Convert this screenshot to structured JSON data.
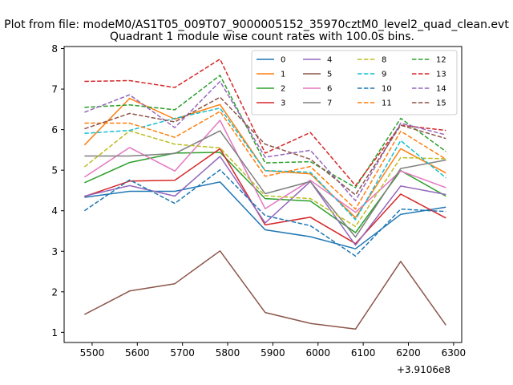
{
  "chart_data": {
    "type": "line",
    "suptitle": "Plot from file: modeM0/AS1T05_009T07_9000005152_35970cztM0_level2_quad_clean.evt",
    "title": "Quadrant 1 module wise count rates with 100.0s bins.",
    "xlabel": "",
    "ylabel": "",
    "x_offset_label": "+3.9106e8",
    "xlim": [
      5438,
      6318
    ],
    "ylim": [
      0.75,
      8.05
    ],
    "x": [
      5483,
      5583,
      5683,
      5783,
      5883,
      5983,
      6083,
      6183,
      6283
    ],
    "xticks": [
      5500,
      5600,
      5700,
      5800,
      5900,
      6000,
      6100,
      6200,
      6300
    ],
    "xtick_labels": [
      "5500",
      "5600",
      "5700",
      "5800",
      "5900",
      "6000",
      "6100",
      "6200",
      "6300"
    ],
    "yticks": [
      1,
      2,
      3,
      4,
      5,
      6,
      7,
      8
    ],
    "ytick_labels": [
      "1",
      "2",
      "3",
      "4",
      "5",
      "6",
      "7",
      "8"
    ],
    "legend_position": "top-right",
    "legend_columns": 4,
    "series": [
      {
        "name": "0",
        "color": "#1f77b4",
        "dash": "solid",
        "values": [
          4.33,
          4.48,
          4.48,
          4.71,
          3.53,
          3.36,
          3.06,
          3.91,
          4.09
        ]
      },
      {
        "name": "1",
        "color": "#ff7f0e",
        "dash": "solid",
        "values": [
          5.62,
          6.77,
          6.26,
          6.62,
          4.99,
          4.91,
          3.83,
          5.53,
          4.93
        ]
      },
      {
        "name": "2",
        "color": "#2ca02c",
        "dash": "solid",
        "values": [
          4.69,
          5.19,
          5.42,
          5.44,
          4.3,
          4.24,
          3.46,
          4.99,
          4.36
        ]
      },
      {
        "name": "3",
        "color": "#d62728",
        "dash": "solid",
        "values": [
          4.35,
          4.73,
          4.75,
          5.53,
          3.65,
          3.84,
          3.19,
          4.41,
          3.82
        ]
      },
      {
        "name": "4",
        "color": "#9467bd",
        "dash": "solid",
        "values": [
          4.36,
          4.62,
          4.36,
          5.34,
          3.7,
          4.72,
          3.15,
          4.61,
          4.4
        ]
      },
      {
        "name": "5",
        "color": "#8c564b",
        "dash": "solid",
        "values": [
          1.44,
          2.02,
          2.2,
          3.01,
          1.49,
          1.22,
          1.08,
          2.75,
          1.18
        ]
      },
      {
        "name": "6",
        "color": "#e377c2",
        "dash": "solid",
        "values": [
          4.83,
          5.56,
          4.98,
          6.23,
          4.05,
          4.75,
          3.96,
          4.98,
          4.57
        ]
      },
      {
        "name": "7",
        "color": "#7f7f7f",
        "dash": "solid",
        "values": [
          5.35,
          5.35,
          5.41,
          5.97,
          4.42,
          4.72,
          3.35,
          5.04,
          5.25
        ]
      },
      {
        "name": "8",
        "color": "#bcbd22",
        "dash": "dashed",
        "values": [
          5.08,
          5.97,
          5.64,
          5.55,
          4.37,
          4.3,
          3.61,
          5.31,
          5.28
        ]
      },
      {
        "name": "9",
        "color": "#17becf",
        "dash": "dashed",
        "values": [
          5.91,
          5.98,
          6.28,
          6.53,
          4.99,
          4.95,
          3.78,
          5.73,
          4.81
        ]
      },
      {
        "name": "10",
        "color": "#1f77b4",
        "dash": "dashed",
        "values": [
          4.0,
          4.76,
          4.18,
          5.01,
          3.88,
          3.63,
          2.88,
          4.04,
          3.98
        ]
      },
      {
        "name": "11",
        "color": "#ff7f0e",
        "dash": "dashed",
        "values": [
          6.16,
          6.16,
          5.81,
          6.45,
          4.85,
          5.09,
          4.04,
          5.96,
          5.27
        ]
      },
      {
        "name": "12",
        "color": "#2ca02c",
        "dash": "dashed",
        "values": [
          6.55,
          6.61,
          6.49,
          7.34,
          5.18,
          5.21,
          4.57,
          6.28,
          5.46
        ]
      },
      {
        "name": "13",
        "color": "#d62728",
        "dash": "dashed",
        "values": [
          7.19,
          7.21,
          7.04,
          7.74,
          5.42,
          5.93,
          4.62,
          6.11,
          5.98
        ]
      },
      {
        "name": "14",
        "color": "#9467bd",
        "dash": "dashed",
        "values": [
          6.43,
          6.86,
          6.05,
          7.19,
          5.32,
          5.49,
          4.25,
          6.16,
          5.87
        ]
      },
      {
        "name": "15",
        "color": "#8c564b",
        "dash": "dashed",
        "values": [
          6.02,
          6.4,
          6.19,
          6.8,
          5.64,
          5.27,
          4.39,
          6.11,
          5.78
        ]
      }
    ]
  }
}
